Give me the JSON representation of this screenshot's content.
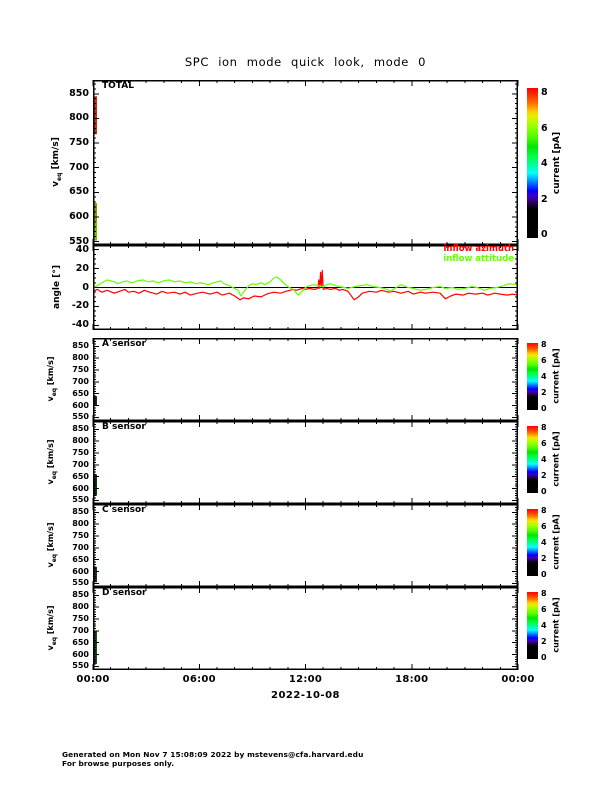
{
  "footer": {
    "line1": "Generated on Mon Nov  7 15:08:09 2022 by mstevens@cfa.harvard.edu",
    "line2": "For browse purposes only."
  },
  "labels": {
    "v": "v",
    "eq": "eq",
    "kms": " [km/s]",
    "angle": "angle [°]"
  },
  "chart_data": {
    "type": "line",
    "title": "SPC ion mode quick look, mode 0",
    "x_axis": {
      "range_hours": [
        0,
        24
      ],
      "major_labels": [
        "00:00",
        "06:00",
        "12:00",
        "18:00",
        "00:00"
      ],
      "major_step_hours": 6,
      "minor_step_hours": 1,
      "date_label": "2022-10-08"
    },
    "colorbar": {
      "label": "current [pA]",
      "tick_values": [
        0,
        2,
        4,
        6,
        8
      ],
      "range": [
        -0.15,
        8.3
      ],
      "stops": [
        [
          0,
          "#000000"
        ],
        [
          1.5,
          "#000000"
        ],
        [
          1.9,
          "#30006a"
        ],
        [
          2.2,
          "#3c00c8"
        ],
        [
          2.5,
          "#0000ff"
        ],
        [
          2.9,
          "#0064ff"
        ],
        [
          3.2,
          "#00b4ff"
        ],
        [
          3.5,
          "#00ffff"
        ],
        [
          4.0,
          "#00ff96"
        ],
        [
          4.5,
          "#00ff3c"
        ],
        [
          5.0,
          "#00e600"
        ],
        [
          5.6,
          "#55ff00"
        ],
        [
          6.2,
          "#a0ff00"
        ],
        [
          6.7,
          "#e6f000"
        ],
        [
          7.0,
          "#ffc800"
        ],
        [
          7.4,
          "#ff7800"
        ],
        [
          7.8,
          "#ff3c00"
        ],
        [
          8.3,
          "#ff0000"
        ]
      ]
    },
    "panels": [
      {
        "key": "total",
        "label": "TOTAL",
        "yrange": [
          543,
          878
        ],
        "ymajor": [
          550,
          600,
          650,
          700,
          750,
          800,
          850
        ],
        "yminor": 10,
        "tick_size": "big",
        "edge_strip": [
          {
            "y0": 845,
            "y1": 768,
            "color": "#c03018"
          },
          {
            "y0": 628,
            "y1": 590,
            "color": "#8a9a00"
          },
          {
            "y0": 590,
            "y1": 552,
            "color": "#76c000"
          }
        ]
      },
      {
        "key": "angle",
        "yrange": [
          -45,
          45
        ],
        "ymajor": [
          -40,
          -20,
          0,
          20,
          40
        ],
        "yminor": 5,
        "tick_size": "big",
        "zero_line": true,
        "series": [
          {
            "name": "inflow azimuth",
            "color": "#ff0000",
            "points": [
              [
                0,
                -4
              ],
              [
                0.25,
                -2
              ],
              [
                0.5,
                -5
              ],
              [
                0.8,
                -3
              ],
              [
                1.2,
                -6
              ],
              [
                1.5,
                -4
              ],
              [
                1.8,
                -2
              ],
              [
                2,
                -5
              ],
              [
                2.3,
                -4
              ],
              [
                2.6,
                -6
              ],
              [
                2.9,
                -3
              ],
              [
                3.2,
                -5
              ],
              [
                3.6,
                -7
              ],
              [
                3.9,
                -4
              ],
              [
                4.2,
                -6
              ],
              [
                4.6,
                -5
              ],
              [
                4.9,
                -7
              ],
              [
                5.2,
                -5
              ],
              [
                5.5,
                -8
              ],
              [
                5.9,
                -6
              ],
              [
                6.2,
                -5
              ],
              [
                6.6,
                -7
              ],
              [
                7,
                -5
              ],
              [
                7.3,
                -8
              ],
              [
                7.7,
                -6
              ],
              [
                8,
                -9
              ],
              [
                8.3,
                -13
              ],
              [
                8.5,
                -11
              ],
              [
                8.8,
                -12
              ],
              [
                9.1,
                -9
              ],
              [
                9.5,
                -10
              ],
              [
                9.8,
                -7
              ],
              [
                10.2,
                -5
              ],
              [
                10.6,
                -6
              ],
              [
                10.9,
                -4
              ],
              [
                11.3,
                -2
              ],
              [
                11.5,
                -3
              ],
              [
                11.8,
                -1
              ],
              [
                12,
                -2
              ],
              [
                12.2,
                -1
              ],
              [
                12.5,
                -2
              ],
              [
                12.7,
                -1
              ],
              [
                12.75,
                8
              ],
              [
                12.8,
                -1
              ],
              [
                12.85,
                16
              ],
              [
                12.9,
                1
              ],
              [
                12.95,
                18
              ],
              [
                13,
                -2
              ],
              [
                13.2,
                -1
              ],
              [
                13.4,
                -2
              ],
              [
                13.7,
                -1
              ],
              [
                13.9,
                -3
              ],
              [
                14.1,
                -2
              ],
              [
                14.4,
                -4
              ],
              [
                14.75,
                -13
              ],
              [
                15,
                -10
              ],
              [
                15.2,
                -6
              ],
              [
                15.6,
                -4
              ],
              [
                16,
                -5
              ],
              [
                16.3,
                -3
              ],
              [
                16.7,
                -5
              ],
              [
                17,
                -4
              ],
              [
                17.4,
                -6
              ],
              [
                17.8,
                -4
              ],
              [
                18.1,
                -7
              ],
              [
                18.5,
                -5
              ],
              [
                18.8,
                -6
              ],
              [
                19.2,
                -5
              ],
              [
                19.6,
                -6
              ],
              [
                19.9,
                -12
              ],
              [
                20.2,
                -9
              ],
              [
                20.5,
                -7
              ],
              [
                20.9,
                -8
              ],
              [
                21.2,
                -6
              ],
              [
                21.6,
                -7
              ],
              [
                22,
                -6
              ],
              [
                22.3,
                -8
              ],
              [
                22.7,
                -6
              ],
              [
                23,
                -7
              ],
              [
                23.4,
                -8
              ],
              [
                23.7,
                -7
              ],
              [
                24,
                -8
              ]
            ]
          },
          {
            "name": "inflow attitude",
            "color": "#66ff00",
            "points": [
              [
                0,
                0
              ],
              [
                0.25,
                2
              ],
              [
                0.5,
                5
              ],
              [
                0.8,
                8
              ],
              [
                1.2,
                6
              ],
              [
                1.4,
                4
              ],
              [
                1.7,
                6
              ],
              [
                1.9,
                7
              ],
              [
                2.2,
                5
              ],
              [
                2.5,
                7
              ],
              [
                2.8,
                8
              ],
              [
                3.1,
                6
              ],
              [
                3.4,
                7
              ],
              [
                3.7,
                5
              ],
              [
                4,
                7
              ],
              [
                4.3,
                8
              ],
              [
                4.6,
                6
              ],
              [
                4.9,
                7
              ],
              [
                5.2,
                5
              ],
              [
                5.5,
                6
              ],
              [
                5.8,
                4
              ],
              [
                6.1,
                5
              ],
              [
                6.5,
                3
              ],
              [
                6.8,
                5
              ],
              [
                7.2,
                7
              ],
              [
                7.4,
                4
              ],
              [
                7.7,
                2
              ],
              [
                7.9,
                0
              ],
              [
                8.2,
                -3
              ],
              [
                8.35,
                -9
              ],
              [
                8.5,
                -5
              ],
              [
                8.8,
                2
              ],
              [
                9,
                4
              ],
              [
                9.2,
                3
              ],
              [
                9.5,
                5
              ],
              [
                9.7,
                3
              ],
              [
                10,
                6
              ],
              [
                10.2,
                10
              ],
              [
                10.4,
                11
              ],
              [
                10.6,
                8
              ],
              [
                10.8,
                4
              ],
              [
                11,
                1
              ],
              [
                11.3,
                -2
              ],
              [
                11.5,
                -6
              ],
              [
                11.6,
                -8
              ],
              [
                11.8,
                -4
              ],
              [
                12,
                0
              ],
              [
                12.2,
                2
              ],
              [
                12.5,
                3
              ],
              [
                12.7,
                2
              ],
              [
                13,
                1
              ],
              [
                13.2,
                3
              ],
              [
                13.4,
                4
              ],
              [
                13.7,
                2
              ],
              [
                13.9,
                1
              ],
              [
                14.2,
                0
              ],
              [
                14.4,
                -1
              ],
              [
                14.8,
                1
              ],
              [
                15.1,
                2
              ],
              [
                15.5,
                3
              ],
              [
                15.8,
                1
              ],
              [
                16.2,
                0
              ],
              [
                16.6,
                -2
              ],
              [
                16.8,
                -4
              ],
              [
                17.2,
                1
              ],
              [
                17.4,
                3
              ],
              [
                17.8,
                0
              ],
              [
                18.1,
                -1
              ],
              [
                18.5,
                -3
              ],
              [
                18.8,
                -2
              ],
              [
                19.2,
                0
              ],
              [
                19.6,
                1
              ],
              [
                19.9,
                -1
              ],
              [
                20.3,
                0
              ],
              [
                20.6,
                -2
              ],
              [
                21,
                -1
              ],
              [
                21.4,
                1
              ],
              [
                21.7,
                0
              ],
              [
                22.1,
                -3
              ],
              [
                22.4,
                -1
              ],
              [
                22.8,
                0
              ],
              [
                23.2,
                2
              ],
              [
                23.5,
                4
              ],
              [
                24,
                3
              ]
            ]
          }
        ]
      },
      {
        "key": "a",
        "label": "A sensor",
        "yrange": [
          535,
          885
        ],
        "ymajor": [
          550,
          600,
          650,
          700,
          750,
          800,
          850
        ],
        "yminor": 10,
        "tick_size": "small",
        "edge_strip": [
          {
            "y0": 640,
            "y1": 600,
            "color": "#143c14"
          }
        ]
      },
      {
        "key": "b",
        "label": "B sensor",
        "yrange": [
          535,
          885
        ],
        "ymajor": [
          550,
          600,
          650,
          700,
          750,
          800,
          850
        ],
        "yminor": 10,
        "tick_size": "small",
        "edge_strip": [
          {
            "y0": 660,
            "y1": 570,
            "color": "#123812"
          }
        ]
      },
      {
        "key": "c",
        "label": "C sensor",
        "yrange": [
          535,
          885
        ],
        "ymajor": [
          550,
          600,
          650,
          700,
          750,
          800,
          850
        ],
        "yminor": 10,
        "tick_size": "small",
        "edge_strip": [
          {
            "y0": 620,
            "y1": 555,
            "color": "#154015"
          }
        ]
      },
      {
        "key": "d",
        "label": "D sensor",
        "yrange": [
          535,
          885
        ],
        "ymajor": [
          550,
          600,
          650,
          700,
          750,
          800,
          850
        ],
        "yminor": 10,
        "tick_size": "small",
        "edge_strip": [
          {
            "y0": 700,
            "y1": 560,
            "color": "#1c541c"
          }
        ]
      }
    ]
  }
}
